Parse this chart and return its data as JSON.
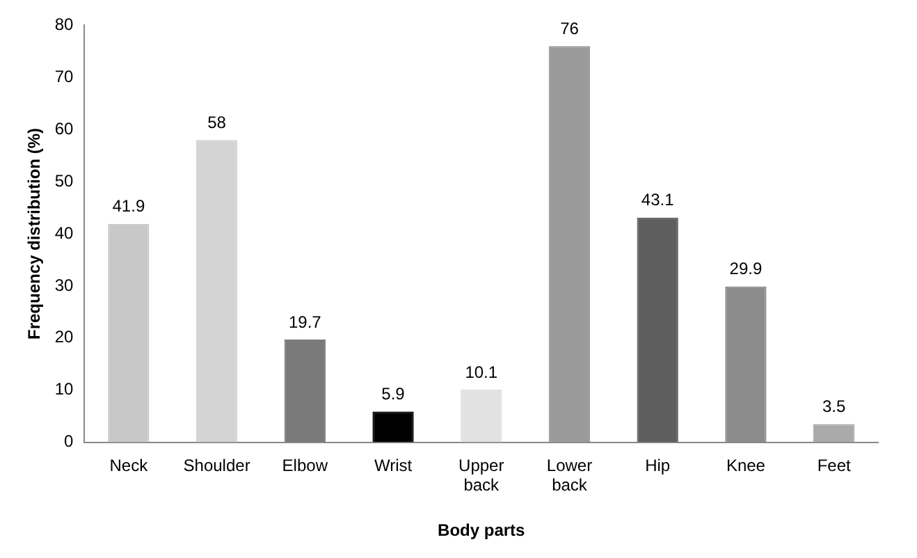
{
  "chart_data": {
    "type": "bar",
    "xlabel": "Body parts",
    "ylabel": "Frequency distribution (%)",
    "categories": [
      "Neck",
      "Shoulder",
      "Elbow",
      "Wrist",
      "Upper back",
      "Lower back",
      "Hip",
      "Knee",
      "Feet"
    ],
    "values": [
      41.9,
      58,
      19.7,
      5.9,
      10.1,
      76,
      43.1,
      29.9,
      3.5
    ],
    "colors": [
      "#c8c8c8",
      "#d4d4d4",
      "#7a7a7a",
      "#000000",
      "#e2e2e2",
      "#9a9a9a",
      "#5e5e5e",
      "#8c8c8c",
      "#aaaaaa"
    ],
    "ylim": [
      0,
      80
    ],
    "yticks": [
      0,
      10,
      20,
      30,
      40,
      50,
      60,
      70,
      80
    ],
    "data_labels": true,
    "grid": false,
    "legend": false
  }
}
